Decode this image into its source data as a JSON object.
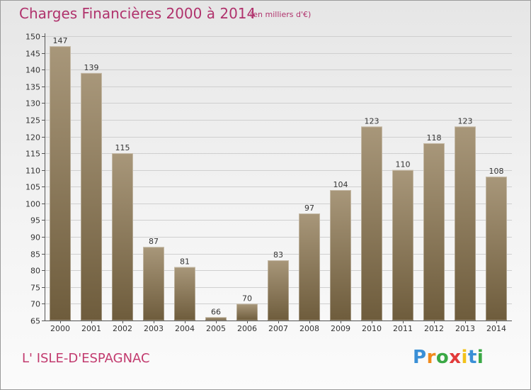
{
  "header": {
    "title": "Charges Financières 2000 à 2014",
    "subtitle": "(en milliers d'€)"
  },
  "footer": {
    "town": "L' ISLE-D'ESPAGNAC",
    "logo_text": "Proxiti"
  },
  "colors": {
    "title": "#b0326c",
    "bar_top": "#a8977a",
    "bar_bottom": "#6e5c3c",
    "logo_letters": [
      "#3a8fd6",
      "#f08a1c",
      "#3aa845",
      "#e23b3b",
      "#f2c21b",
      "#3a8fd6",
      "#3aa845"
    ]
  },
  "chart_data": {
    "type": "bar",
    "title": "Charges Financières 2000 à 2014",
    "subtitle": "(en milliers d'€)",
    "categories": [
      "2000",
      "2001",
      "2002",
      "2003",
      "2004",
      "2005",
      "2006",
      "2007",
      "2008",
      "2009",
      "2010",
      "2011",
      "2012",
      "2013",
      "2014"
    ],
    "values": [
      147,
      139,
      115,
      87,
      81,
      66,
      70,
      83,
      97,
      104,
      123,
      110,
      118,
      123,
      108
    ],
    "ylim": [
      65,
      150
    ],
    "ytick_step": 5,
    "grid": true,
    "data_labels": true
  }
}
